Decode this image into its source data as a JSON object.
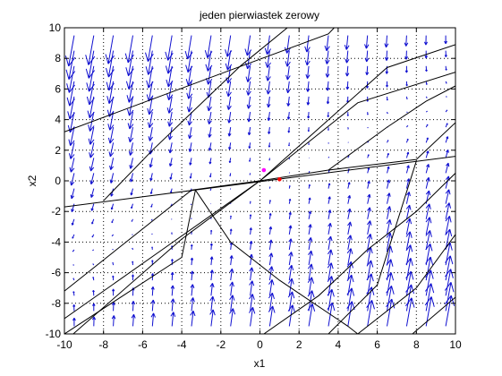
{
  "chart_data": {
    "type": "quiver",
    "title": "jeden pierwiastek zerowy",
    "xlabel": "x1",
    "ylabel": "x2",
    "xlim": [
      -10,
      10
    ],
    "ylim": [
      -10,
      10
    ],
    "xticks": [
      -10,
      -8,
      -6,
      -4,
      -2,
      0,
      2,
      4,
      6,
      8,
      10
    ],
    "yticks": [
      -10,
      -8,
      -6,
      -4,
      -2,
      0,
      2,
      4,
      6,
      8,
      10
    ],
    "xtick_labels": [
      "-10",
      "-8",
      "-6",
      "-4",
      "-2",
      "0",
      "2",
      "4",
      "6",
      "8",
      "10"
    ],
    "ytick_labels": [
      "-10",
      "-8",
      "-6",
      "-4",
      "-2",
      "0",
      "2",
      "4",
      "6",
      "8",
      "10"
    ],
    "grid": true,
    "grid_style": "dotted",
    "vector_field": {
      "x_range": [
        -9.5,
        9.5
      ],
      "y_range": [
        -9.5,
        9.5
      ],
      "step": 1.0,
      "matrix": [
        [
          0.04,
          -0.04
        ],
        [
          0.16,
          -0.28
        ]
      ],
      "arrow_scale": 1.0,
      "color": "#1010d0"
    },
    "trajectories": [
      {
        "points": [
          [
            -10,
            -1.7
          ],
          [
            10,
            1.6
          ]
        ]
      },
      {
        "points": [
          [
            -10,
            3.2
          ],
          [
            -2,
            7.0
          ],
          [
            3.5,
            9.6
          ],
          [
            3.8,
            10
          ]
        ]
      },
      {
        "points": [
          [
            -8,
            -1.3
          ],
          [
            -5.5,
            2.0
          ],
          [
            -1.0,
            7.5
          ],
          [
            1.4,
            10
          ]
        ]
      },
      {
        "points": [
          [
            -10,
            -7.2
          ],
          [
            -3.5,
            -0.6
          ],
          [
            0,
            0
          ],
          [
            6.5,
            7.4
          ],
          [
            10,
            8.9
          ]
        ]
      },
      {
        "points": [
          [
            -10,
            -10.5
          ],
          [
            -4,
            -3.8
          ],
          [
            0,
            0
          ],
          [
            5,
            5.1
          ],
          [
            10,
            7.1
          ]
        ]
      },
      {
        "points": [
          [
            -10,
            -9.0
          ],
          [
            -5,
            -4.5
          ],
          [
            0,
            0
          ],
          [
            3.5,
            0.7
          ],
          [
            8,
            1.4
          ],
          [
            10,
            3.8
          ]
        ]
      },
      {
        "points": [
          [
            3.5,
            0.7
          ],
          [
            6.5,
            3.5
          ],
          [
            8.5,
            5.2
          ],
          [
            10,
            6.2
          ]
        ]
      },
      {
        "points": [
          [
            -10,
            -10
          ],
          [
            -4,
            -5.0
          ],
          [
            -3.3,
            -0.6
          ]
        ]
      },
      {
        "points": [
          [
            -3.3,
            -0.6
          ],
          [
            -1.5,
            -4.0
          ],
          [
            1.0,
            -6.5
          ],
          [
            4.5,
            -9.5
          ],
          [
            5.0,
            -10
          ]
        ]
      },
      {
        "points": [
          [
            3.5,
            -10
          ],
          [
            6.0,
            -6.8
          ],
          [
            8.0,
            1.3
          ]
        ]
      },
      {
        "points": [
          [
            7.8,
            -10
          ],
          [
            10,
            -7.6
          ]
        ]
      },
      {
        "points": [
          [
            5.0,
            -10
          ],
          [
            8.0,
            -7.0
          ],
          [
            10,
            -3.5
          ]
        ]
      },
      {
        "points": [
          [
            0.2,
            -10
          ],
          [
            3.0,
            -7.5
          ],
          [
            5.5,
            -4.5
          ],
          [
            8.0,
            -2.0
          ],
          [
            10,
            0.5
          ]
        ]
      }
    ],
    "markers": [
      {
        "x": 0.2,
        "y": 0.7,
        "color": "#ff00ff"
      },
      {
        "x": 1.0,
        "y": 0.1,
        "color": "#ff0000"
      }
    ]
  }
}
